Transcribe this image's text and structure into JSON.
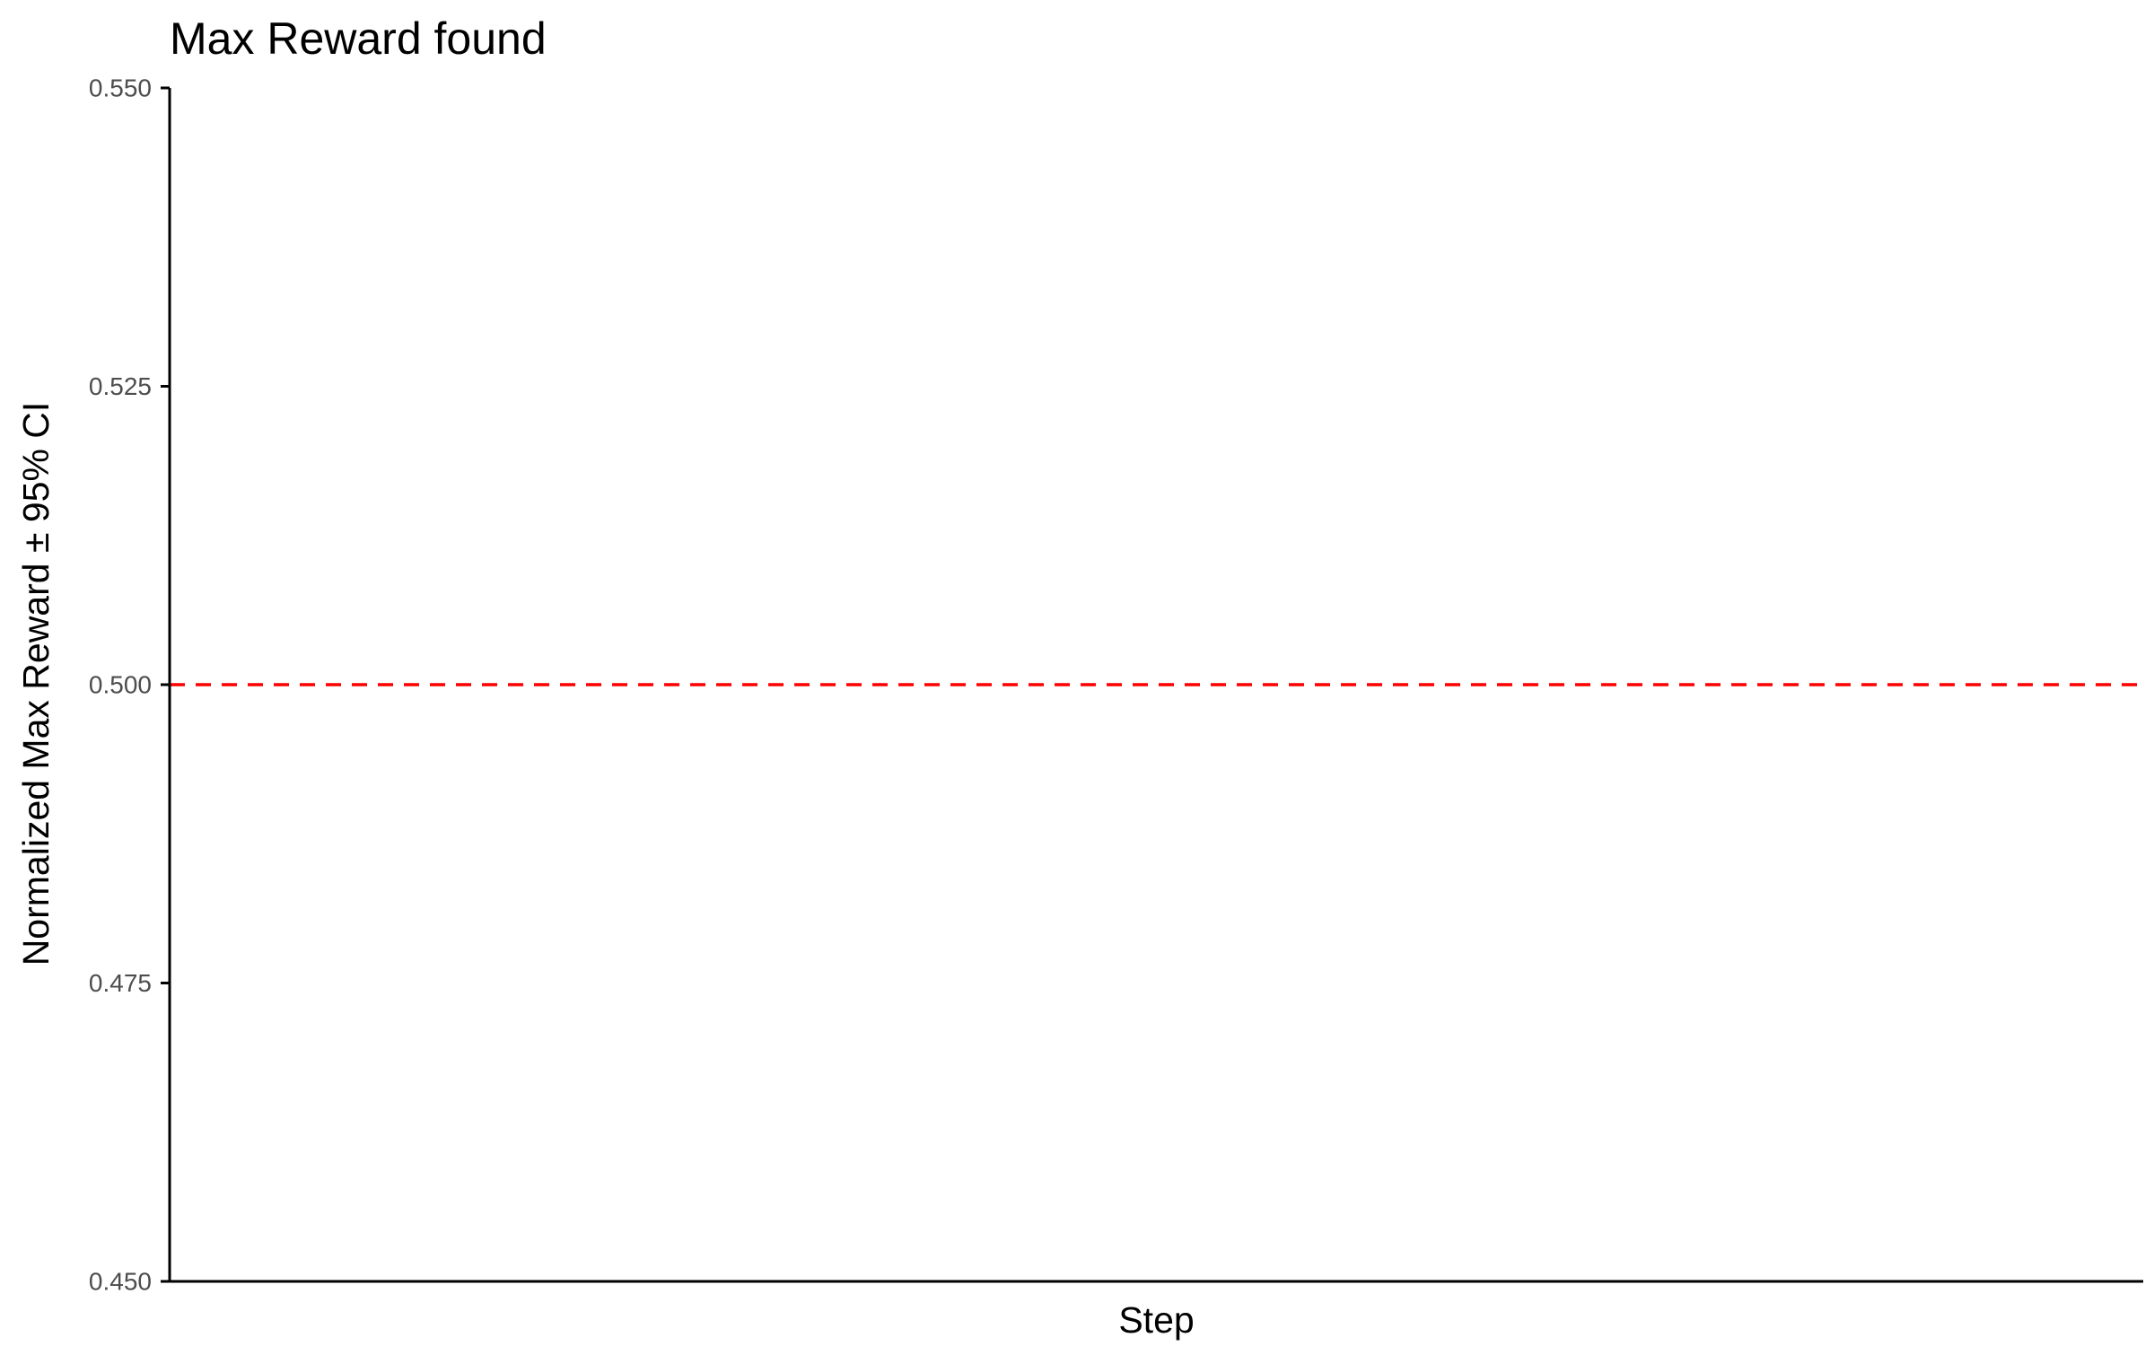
{
  "chart_data": {
    "type": "line",
    "title": "Max Reward found",
    "xlabel": "Step",
    "ylabel": "Normalized Max Reward ± 95% CI",
    "ylim": [
      0.45,
      0.55
    ],
    "y_ticks": [
      0.45,
      0.475,
      0.5,
      0.525,
      0.55
    ],
    "y_tick_labels": [
      "0.450",
      "0.475",
      "0.500",
      "0.525",
      "0.550"
    ],
    "x_ticks": [],
    "series": [],
    "reference_lines": [
      {
        "orientation": "horizontal",
        "y": 0.5,
        "style": "dashed",
        "color": "#ff0000"
      }
    ],
    "grid": false,
    "legend": "none"
  }
}
